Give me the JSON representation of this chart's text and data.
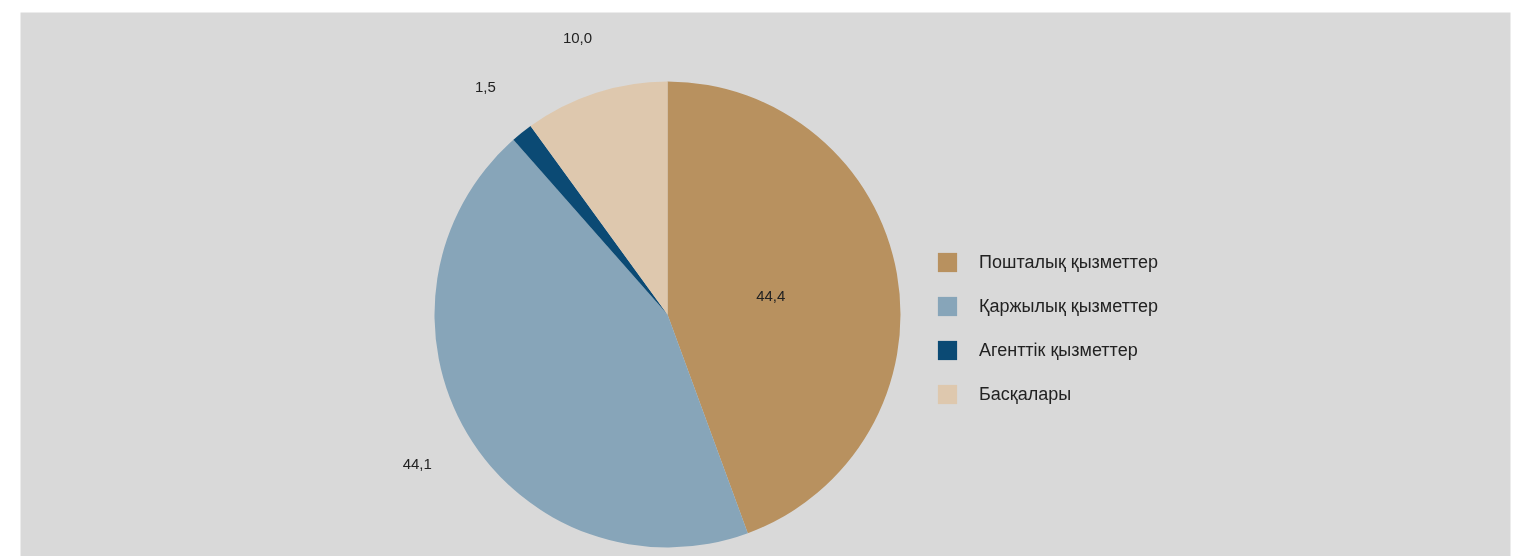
{
  "chart_data": {
    "type": "pie",
    "categories": [
      "Пошталық қызметтер",
      "Қаржылық қызметтер",
      "Агенттік қызметтер",
      "Басқалары"
    ],
    "values": [
      44.4,
      44.1,
      1.5,
      10.0
    ],
    "value_labels": [
      "44,4",
      "44,1",
      "1,5",
      "10,0"
    ],
    "colors": [
      "#b8915f",
      "#87a5b9",
      "#0b4a74",
      "#dec8ae"
    ],
    "legend": "right"
  }
}
